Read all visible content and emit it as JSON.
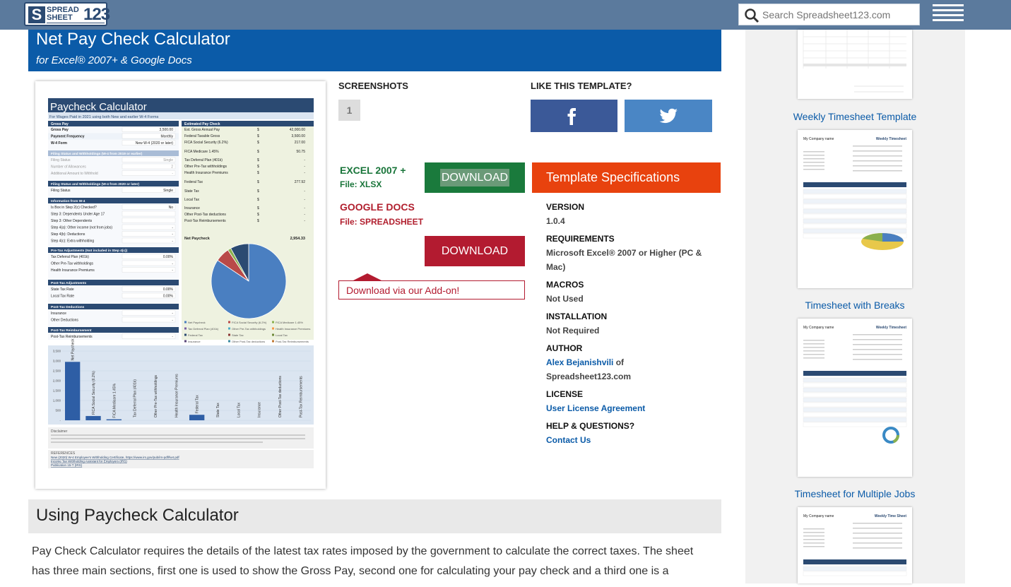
{
  "header": {
    "logo": {
      "line1": "SPREAD",
      "line2": "SHEET",
      "number": "123"
    },
    "search_placeholder": "Search Spreadsheet123.com"
  },
  "hero": {
    "title": "Net Pay Check Calculator",
    "subtitle": "for Excel® 2007+ & Google Docs"
  },
  "preview": {
    "title": "Paycheck Calculator",
    "subtitle": "For Wages Paid in 2021 using both New and earlier W-4 Forms",
    "gross_pay_header": "Gross Pay",
    "gross_rows": [
      {
        "label": "Gross Pay",
        "value": "3,500.00"
      },
      {
        "label": "Payment Frequency",
        "value": "Monthly"
      },
      {
        "label": "W-4 Form",
        "value": "New W-4 (2020 or later)"
      }
    ],
    "est_header": "Estimated Pay Check",
    "est_rows": [
      {
        "label": "Est. Gross Annual Pay",
        "value": "42,000.00"
      },
      {
        "label": "Federal Taxable Gross",
        "value": "3,500.00"
      },
      {
        "label": "FICA Social Security (6.2%)",
        "value": "217.00"
      },
      {
        "label": "FICA Medicare 1.45%",
        "value": "50.75"
      },
      {
        "label": "Tax Deferral Plan (401k)",
        "value": "-"
      },
      {
        "label": "Other Pre-Tax withholdings",
        "value": "-"
      },
      {
        "label": "Health Insurance Premiums",
        "value": "-"
      },
      {
        "label": "Federal Tax",
        "value": "277.92"
      },
      {
        "label": "State Tax",
        "value": "-"
      },
      {
        "label": "Local Tax",
        "value": "-"
      },
      {
        "label": "Insurance",
        "value": "-"
      },
      {
        "label": "Other Post-Tax deductions",
        "value": "-"
      },
      {
        "label": "Post-Tax Reimbursements",
        "value": "-"
      }
    ],
    "net_label": "Net Paycheck",
    "net_value": "2,954.33",
    "sections": [
      "Filing Status and Withholdings (W-4 from 2019 or earlier)",
      "Filing Status and Withholdings (W-4 from 2020 or later)",
      "Information from W-4",
      "Pre-Tax Adjustments (Not included in Step 4(c))",
      "Post-Tax Adjustments",
      "Post-Tax Deductions",
      "Post-Tax Reimbursement"
    ],
    "section_rows": [
      [
        "Filing Status",
        "Number of Allowances",
        "Additional Amount to Withhold"
      ],
      [
        "Filing Status"
      ],
      [
        "Is Box in Step 2(c) Checked?",
        "Step 3: Dependents Under Age 17",
        "Step 3: Other Dependents",
        "Step 4(a): Other income (not from jobs)",
        "Step 4(b): Deductions",
        "Step 4(c): Extra withholding"
      ],
      [
        "Tax Deferral Plan (401k)",
        "Other Pre-Tax withholdings",
        "Health Insurance Premiums"
      ],
      [
        "State Tax Rate",
        "Local Tax Rate"
      ],
      [
        "Insurance",
        "Other Deductions"
      ],
      [
        "Post-Tax Reimbursements"
      ]
    ],
    "section_values": [
      [
        "Single",
        "2",
        "-"
      ],
      [
        "Single"
      ],
      [
        "No",
        "",
        "",
        "-",
        "-",
        "-"
      ],
      [
        "0.00%",
        "-",
        "-"
      ],
      [
        "0.00%",
        "0.00%"
      ],
      [
        "-",
        "-"
      ],
      [
        "-"
      ]
    ],
    "pie_legend": [
      "Net Paycheck",
      "FICA Social Security (6.2%)",
      "FICA Medicare 1.45%",
      "Tax Deferral Plan (401k)",
      "Other Pre-Tax withholdings",
      "Health Insurance Premiums",
      "Federal Tax",
      "State Tax",
      "Local Tax",
      "Insurance",
      "Other Post-Tax deductions",
      "Post-Tax Reimbursements"
    ],
    "bar_ticks": [
      "3,500",
      "3,000",
      "2,500",
      "2,000",
      "1,500",
      "1,000",
      "500",
      "-"
    ],
    "bar_labels": [
      "Net Paycheck",
      "FICA Social Security (6.2%)",
      "FICA Medicare 1.45%",
      "Tax Deferral Plan (401k)",
      "Other Pre-Tax withholdings",
      "Health Insurance Premiums",
      "Federal Tax",
      "State Tax",
      "Local Tax",
      "Insurance",
      "Other Post-Tax deductions",
      "Post-Tax Reimbursements"
    ],
    "bar_values": [
      2954.33,
      217,
      50.75,
      0,
      0,
      0,
      277.92,
      0,
      0,
      0,
      0,
      0
    ],
    "disclaimer_label": "Disclaimer",
    "references_label": "REFERENCES",
    "references": [
      "New (2020) W-4 Employee's Withholding Certificate, https://www.irs.gov/pub/irs-pdf/fw4.pdf",
      "Income Tax Withholding Assistant for Employers (IRS)",
      "Publication 15-T (IRS)"
    ]
  },
  "screenshots": {
    "heading": "SCREENSHOTS",
    "tabs": [
      "1"
    ]
  },
  "like": {
    "heading": "LIKE THIS TEMPLATE?"
  },
  "download": {
    "excel_label": "EXCEL 2007 +",
    "excel_file": "File: XLSX",
    "excel_button": "DOWNLOAD",
    "google_label": "GOOGLE DOCS",
    "google_file": "File: SPREADSHEET",
    "google_button": "DOWNLOAD",
    "addon": "Download via our Add-on!"
  },
  "specs": {
    "button": "Template Specifications",
    "version_k": "VERSION",
    "version_v": "1.0.4",
    "req_k": "REQUIREMENTS",
    "req_v": "Microsoft Excel® 2007 or Higher (PC & Mac)",
    "macros_k": "MACROS",
    "macros_v": "Not Used",
    "install_k": "INSTALLATION",
    "install_v": "Not Required",
    "author_k": "AUTHOR",
    "author_name": "Alex Bejanishvili",
    "author_of": " of",
    "author_site": "Spreadsheet123.com",
    "license_k": "LICENSE",
    "license_v": "User License Agreement",
    "help_k": "HELP & QUESTIONS?",
    "help_v": "Contact Us"
  },
  "sidebar": {
    "links": [
      "Weekly Timesheet Template",
      "Timesheet with Breaks",
      "Timesheet for Multiple Jobs"
    ],
    "company": "My Company name",
    "thumb_titles": [
      "Weekly Timesheet",
      "Weekly Timesheet",
      "Weekly Time Sheet"
    ]
  },
  "content": {
    "section_title": "Using Paycheck Calculator",
    "paragraph": "Pay Check Calculator requires the details of the latest tax rates imposed by the government to calculate the correct taxes. The sheet has three main sections, first one is used to show the Gross Pay, second one for calculating your pay check and a third one is a"
  },
  "colors": {
    "topbar": "#5b7a9d",
    "hero": "#0b5ba8",
    "green": "#1a7a3c",
    "red": "#b31b30",
    "orange": "#e8420e",
    "facebook": "#3b5998",
    "twitter": "#4a86c5"
  },
  "chart_data": {
    "type": "pie",
    "categories": [
      "Net Paycheck",
      "FICA Social Security (6.2%)",
      "FICA Medicare 1.45%",
      "Federal Tax"
    ],
    "values": [
      2954.33,
      217,
      50.75,
      277.92
    ]
  }
}
